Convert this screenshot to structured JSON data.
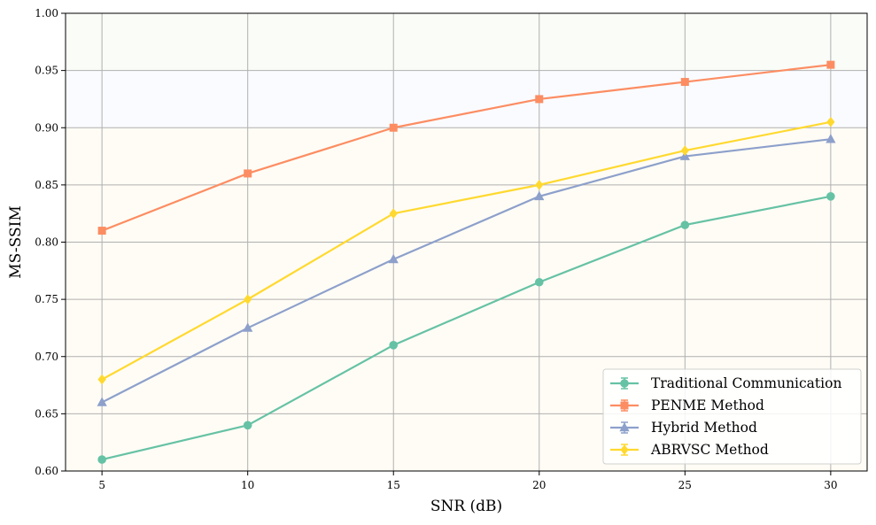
{
  "chart_data": {
    "type": "line",
    "title": "",
    "xlabel": "SNR (dB)",
    "ylabel": "MS-SSIM",
    "x": [
      5,
      10,
      15,
      20,
      25,
      30
    ],
    "xlim": [
      3.75,
      31.25
    ],
    "ylim": [
      0.6,
      1.0
    ],
    "xticks": [
      "5",
      "10",
      "15",
      "20",
      "25",
      "30"
    ],
    "yticks": [
      "0.60",
      "0.65",
      "0.70",
      "0.75",
      "0.80",
      "0.85",
      "0.90",
      "0.95",
      "1.00"
    ],
    "grid": true,
    "legend_position": "bottom-right",
    "background_bands": [
      {
        "from": 0.6,
        "to": 0.9,
        "color": "#fffcf5"
      },
      {
        "from": 0.9,
        "to": 0.95,
        "color": "#fafbff"
      },
      {
        "from": 0.95,
        "to": 1.0,
        "color": "#f9fcf7"
      }
    ],
    "series": [
      {
        "name": "Traditional Communication",
        "color": "#66c2a5",
        "marker": "circle",
        "values": [
          0.61,
          0.64,
          0.71,
          0.765,
          0.815,
          0.84
        ]
      },
      {
        "name": "PENME Method",
        "color": "#fc8d62",
        "marker": "square",
        "values": [
          0.81,
          0.86,
          0.9,
          0.925,
          0.94,
          0.955
        ]
      },
      {
        "name": "Hybrid Method",
        "color": "#8da0cb",
        "marker": "triangle",
        "values": [
          0.66,
          0.725,
          0.785,
          0.84,
          0.875,
          0.89
        ]
      },
      {
        "name": "ABRVSC Method",
        "color": "#ffd92f",
        "marker": "diamond",
        "values": [
          0.68,
          0.75,
          0.825,
          0.85,
          0.88,
          0.905
        ]
      }
    ]
  }
}
